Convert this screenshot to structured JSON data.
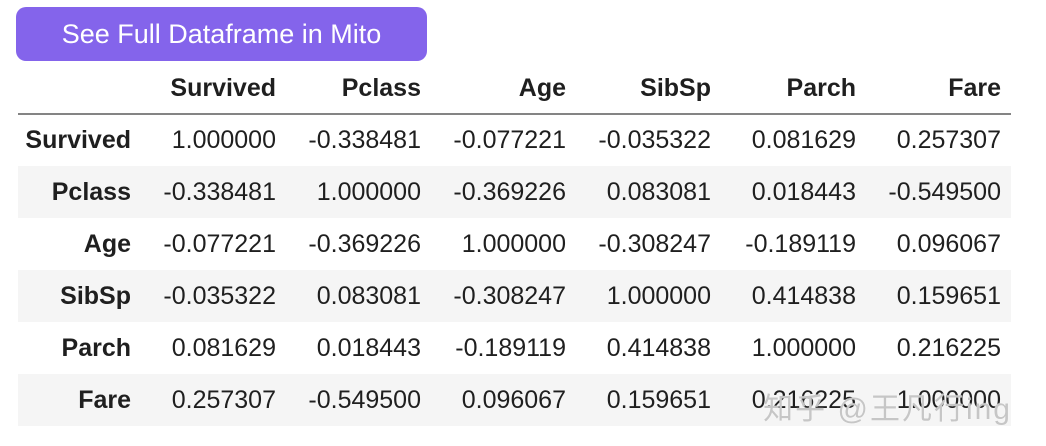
{
  "button": {
    "label": "See Full Dataframe in Mito",
    "background_color": "#8464EB",
    "text_color": "#FFFFFF"
  },
  "table": {
    "columns": [
      "Survived",
      "Pclass",
      "Age",
      "SibSp",
      "Parch",
      "Fare"
    ],
    "rows": [
      {
        "label": "Survived",
        "values": [
          "1.000000",
          "-0.338481",
          "-0.077221",
          "-0.035322",
          "0.081629",
          "0.257307"
        ]
      },
      {
        "label": "Pclass",
        "values": [
          "-0.338481",
          "1.000000",
          "-0.369226",
          "0.083081",
          "0.018443",
          "-0.549500"
        ]
      },
      {
        "label": "Age",
        "values": [
          "-0.077221",
          "-0.369226",
          "1.000000",
          "-0.308247",
          "-0.189119",
          "0.096067"
        ]
      },
      {
        "label": "SibSp",
        "values": [
          "-0.035322",
          "0.083081",
          "-0.308247",
          "1.000000",
          "0.414838",
          "0.159651"
        ]
      },
      {
        "label": "Parch",
        "values": [
          "0.081629",
          "0.018443",
          "-0.189119",
          "0.414838",
          "1.000000",
          "0.216225"
        ]
      },
      {
        "label": "Fare",
        "values": [
          "0.257307",
          "-0.549500",
          "0.096067",
          "0.159651",
          "0.216225",
          "1.000000"
        ]
      }
    ],
    "stripe_color": "#f5f5f5",
    "header_border_color": "#848484"
  },
  "watermark": {
    "text": "知乎 @王凡行ing",
    "color": "#c6c6c6"
  }
}
